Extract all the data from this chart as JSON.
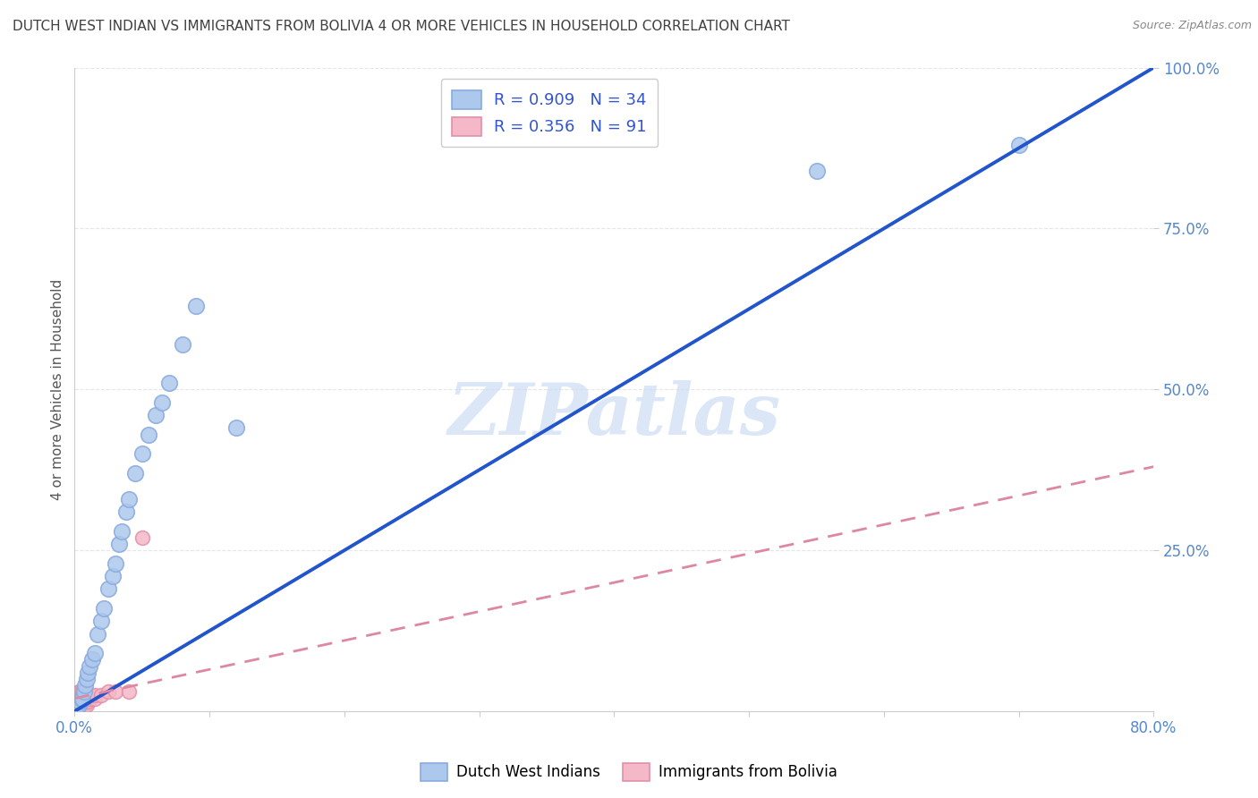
{
  "title": "DUTCH WEST INDIAN VS IMMIGRANTS FROM BOLIVIA 4 OR MORE VEHICLES IN HOUSEHOLD CORRELATION CHART",
  "source": "Source: ZipAtlas.com",
  "ylabel": "4 or more Vehicles in Household",
  "xlabel": "",
  "xlim": [
    0.0,
    0.8
  ],
  "ylim": [
    0.0,
    1.0
  ],
  "xtick_labels": [
    "0.0%",
    "",
    "",
    "",
    "",
    "",
    "",
    "",
    "80.0%"
  ],
  "xtick_vals": [
    0.0,
    0.1,
    0.2,
    0.3,
    0.4,
    0.5,
    0.6,
    0.7,
    0.8
  ],
  "ytick_labels": [
    "25.0%",
    "50.0%",
    "75.0%",
    "100.0%"
  ],
  "ytick_vals": [
    0.25,
    0.5,
    0.75,
    1.0
  ],
  "series1_label": "Dutch West Indians",
  "series1_color": "#adc8ed",
  "series1_edge_color": "#88aadd",
  "series1_R": 0.909,
  "series1_N": 34,
  "series1_line_color": "#2255cc",
  "series2_label": "Immigrants from Bolivia",
  "series2_color": "#f5b8c8",
  "series2_edge_color": "#e090a8",
  "series2_R": 0.356,
  "series2_N": 91,
  "series2_line_color": "#dd88a0",
  "legend_color": "#3355cc",
  "watermark_text": "ZIPatlas",
  "watermark_color": "#ccddf5",
  "title_color": "#404040",
  "axis_tick_color": "#5588cc",
  "grid_color": "#e0e0e0",
  "background_color": "#ffffff",
  "dutch_west_x": [
    0.001,
    0.002,
    0.003,
    0.004,
    0.005,
    0.006,
    0.007,
    0.008,
    0.009,
    0.01,
    0.011,
    0.013,
    0.015,
    0.017,
    0.02,
    0.022,
    0.025,
    0.028,
    0.03,
    0.033,
    0.035,
    0.038,
    0.04,
    0.045,
    0.05,
    0.055,
    0.06,
    0.065,
    0.07,
    0.08,
    0.09,
    0.12,
    0.55,
    0.7
  ],
  "dutch_west_y": [
    0.005,
    0.01,
    0.01,
    0.015,
    0.02,
    0.02,
    0.03,
    0.04,
    0.05,
    0.06,
    0.07,
    0.08,
    0.09,
    0.12,
    0.14,
    0.16,
    0.19,
    0.21,
    0.23,
    0.26,
    0.28,
    0.31,
    0.33,
    0.37,
    0.4,
    0.43,
    0.46,
    0.48,
    0.51,
    0.57,
    0.63,
    0.44,
    0.84,
    0.88
  ],
  "bolivia_x": [
    0.001,
    0.001,
    0.001,
    0.001,
    0.001,
    0.001,
    0.001,
    0.001,
    0.001,
    0.001,
    0.001,
    0.001,
    0.001,
    0.001,
    0.001,
    0.001,
    0.001,
    0.001,
    0.001,
    0.001,
    0.002,
    0.002,
    0.002,
    0.002,
    0.002,
    0.002,
    0.002,
    0.002,
    0.002,
    0.002,
    0.003,
    0.003,
    0.003,
    0.003,
    0.003,
    0.003,
    0.003,
    0.003,
    0.003,
    0.003,
    0.004,
    0.004,
    0.004,
    0.004,
    0.004,
    0.004,
    0.004,
    0.004,
    0.004,
    0.004,
    0.005,
    0.005,
    0.005,
    0.005,
    0.005,
    0.005,
    0.005,
    0.005,
    0.005,
    0.005,
    0.006,
    0.006,
    0.006,
    0.006,
    0.006,
    0.006,
    0.006,
    0.007,
    0.007,
    0.007,
    0.007,
    0.007,
    0.008,
    0.008,
    0.008,
    0.008,
    0.009,
    0.009,
    0.009,
    0.01,
    0.01,
    0.01,
    0.012,
    0.012,
    0.015,
    0.015,
    0.02,
    0.025,
    0.03,
    0.04,
    0.05
  ],
  "bolivia_y": [
    0.005,
    0.005,
    0.005,
    0.005,
    0.005,
    0.005,
    0.005,
    0.01,
    0.01,
    0.01,
    0.01,
    0.01,
    0.01,
    0.015,
    0.015,
    0.015,
    0.02,
    0.02,
    0.025,
    0.025,
    0.005,
    0.005,
    0.01,
    0.01,
    0.015,
    0.015,
    0.02,
    0.02,
    0.025,
    0.025,
    0.005,
    0.01,
    0.01,
    0.015,
    0.015,
    0.02,
    0.02,
    0.025,
    0.025,
    0.03,
    0.005,
    0.01,
    0.01,
    0.015,
    0.015,
    0.02,
    0.02,
    0.025,
    0.025,
    0.03,
    0.005,
    0.01,
    0.01,
    0.015,
    0.015,
    0.02,
    0.02,
    0.025,
    0.025,
    0.03,
    0.01,
    0.015,
    0.015,
    0.02,
    0.02,
    0.025,
    0.03,
    0.01,
    0.015,
    0.02,
    0.02,
    0.025,
    0.01,
    0.015,
    0.02,
    0.025,
    0.01,
    0.015,
    0.02,
    0.015,
    0.02,
    0.025,
    0.02,
    0.025,
    0.02,
    0.025,
    0.025,
    0.03,
    0.03,
    0.03,
    0.27
  ],
  "blue_line_x": [
    0.0,
    0.8
  ],
  "blue_line_y": [
    0.0,
    1.0
  ],
  "pink_line_x": [
    0.0,
    0.8
  ],
  "pink_line_y": [
    0.02,
    0.38
  ]
}
